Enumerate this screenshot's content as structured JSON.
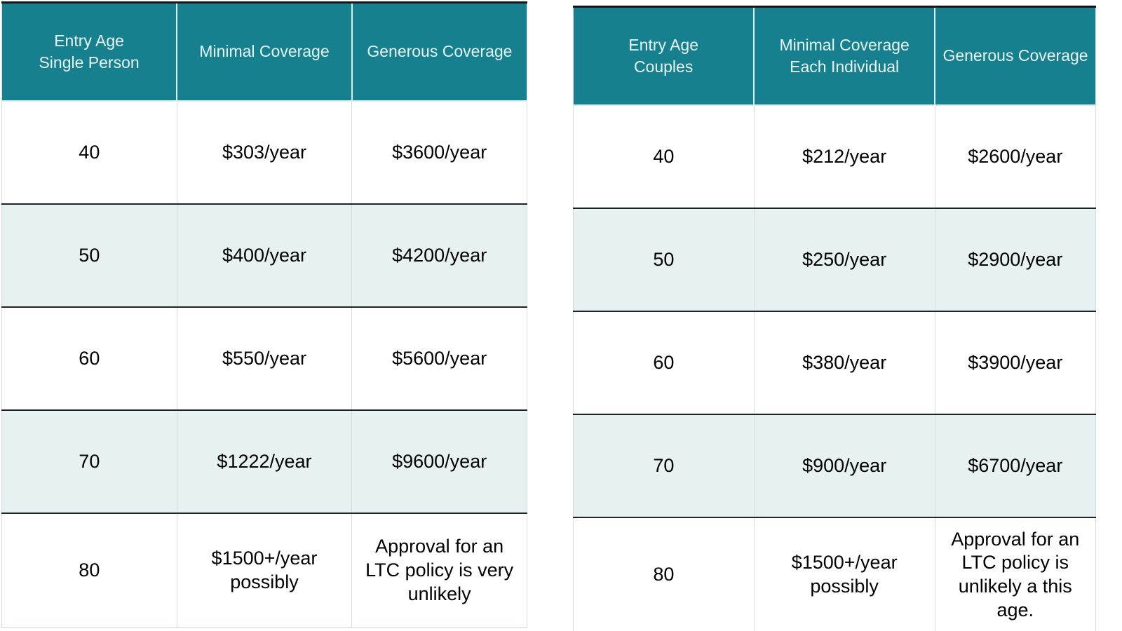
{
  "page": {
    "background": "#ffffff"
  },
  "colors": {
    "header_bg": "#17808F",
    "header_text": "#E7F4F5",
    "stripe_row_bg": "#E7F1F2",
    "plain_row_bg": "#FFFFFF",
    "body_text": "#000000",
    "row_divider": "#1C2426",
    "column_divider": "#D4DCDD",
    "table_top_border": "#151515"
  },
  "tables": [
    {
      "name": "single-person-ltc-rates",
      "headers": [
        "Entry Age\nSingle Person",
        "Minimal Coverage",
        "Generous Coverage"
      ],
      "rows": [
        [
          "40",
          "$303/year",
          "$3600/year"
        ],
        [
          "50",
          "$400/year",
          "$4200/year"
        ],
        [
          "60",
          "$550/year",
          "$5600/year"
        ],
        [
          "70",
          "$1222/year",
          "$9600/year"
        ],
        [
          "80",
          "$1500+/year possibly",
          "Approval for an LTC policy is very unlikely"
        ]
      ]
    },
    {
      "name": "couples-ltc-rates",
      "headers": [
        "Entry Age\nCouples",
        "Minimal Coverage\nEach Individual",
        "Generous Coverage"
      ],
      "rows": [
        [
          "40",
          "$212/year",
          "$2600/year"
        ],
        [
          "50",
          "$250/year",
          "$2900/year"
        ],
        [
          "60",
          "$380/year",
          "$3900/year"
        ],
        [
          "70",
          "$900/year",
          "$6700/year"
        ],
        [
          "80",
          "$1500+/year possibly",
          "Approval for an LTC policy is unlikely a this age."
        ]
      ]
    }
  ]
}
